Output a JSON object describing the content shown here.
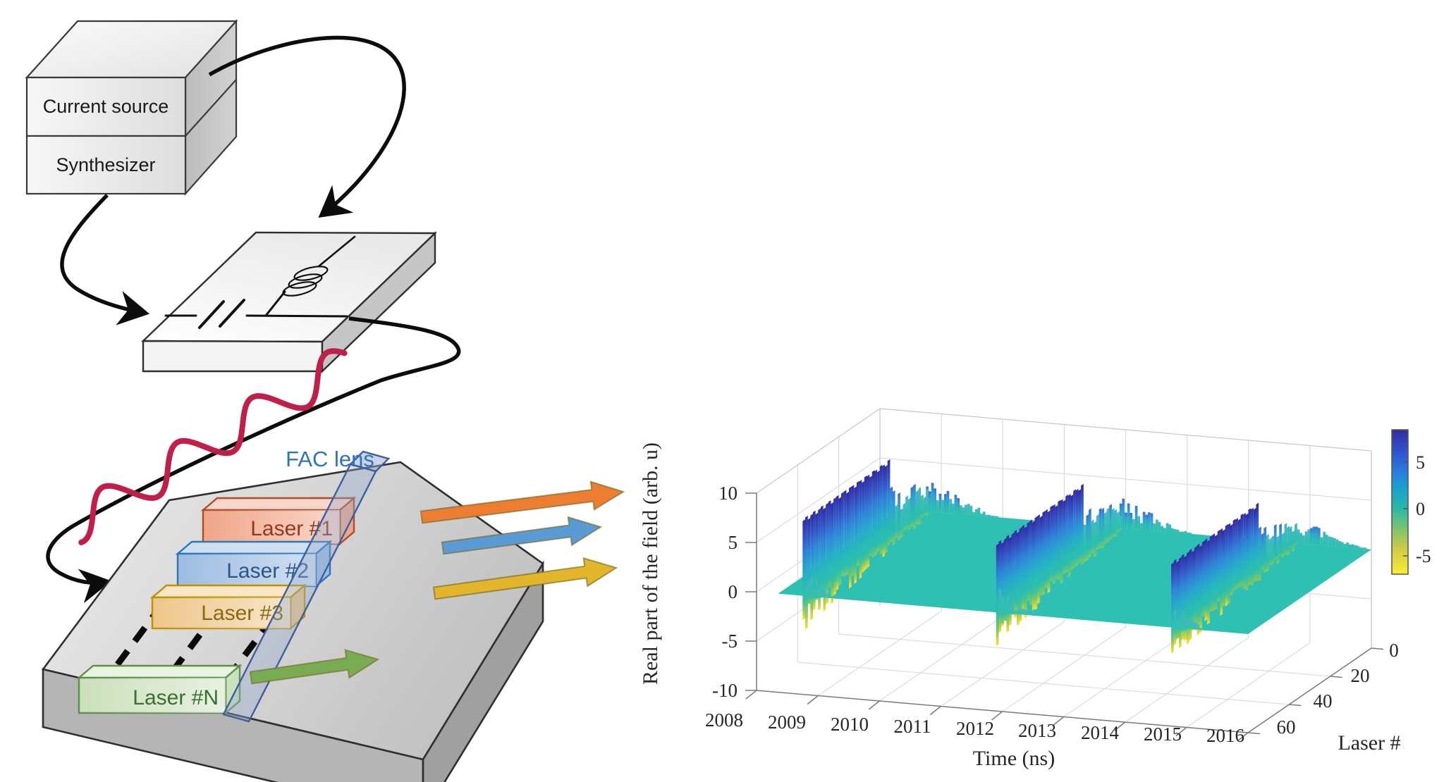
{
  "left_diagram": {
    "current_source_label": "Current source",
    "synthesizer_label": "Synthesizer",
    "fac_lens_label": "FAC lens",
    "fac_lens_label_color": "#2e75b6",
    "rf_wave_color": "#c01f4a",
    "cable_color": "#0c0c0c",
    "lasers": [
      {
        "label": "Laser #1",
        "face": "#f0a689",
        "face_light": "#f9d6c9",
        "edge": "#a8502a",
        "text": "#8f3b22",
        "beam": "#ed7d31"
      },
      {
        "label": "Laser #2",
        "face": "#9dbce2",
        "face_light": "#cfdff2",
        "edge": "#2e75b6",
        "text": "#2a5787",
        "beam": "#5b9bd5"
      },
      {
        "label": "Laser #3",
        "face": "#eec68a",
        "face_light": "#f8e6c4",
        "edge": "#bf9000",
        "text": "#8a6a10",
        "beam": "#e2b52a"
      },
      {
        "label": "Laser #N",
        "face": "#cbe0bc",
        "face_light": "#e9f3e2",
        "edge": "#5f8f4a",
        "text": "#3c6e2e",
        "beam": "#79ac52"
      }
    ]
  },
  "chart_data": {
    "type": "surface",
    "title": "",
    "xlabel": "Time (ns)",
    "x_ticks": [
      2008,
      2009,
      2010,
      2011,
      2012,
      2013,
      2014,
      2015,
      2016
    ],
    "xlim": [
      2008,
      2016
    ],
    "ylabel": "Laser #",
    "y_ticks": [
      0,
      20,
      40,
      60
    ],
    "ylim": [
      0,
      65
    ],
    "zlabel": "Real part of the field (arb. u)",
    "z_ticks": [
      10,
      5,
      0,
      -5,
      -10
    ],
    "zlim": [
      -10,
      10
    ],
    "grid": true,
    "colormap": "parula-reversed",
    "colorbar": {
      "ticks": [
        5,
        0,
        -5
      ],
      "vmin": -7,
      "vmax": 8.4
    },
    "baseline_value": 0,
    "plane_start_time": 2008.35,
    "bursts": [
      {
        "time_ns": 2008.75,
        "peak": 7.8,
        "min": -3.4,
        "ringdown_ns": 1.15
      },
      {
        "time_ns": 2011.9,
        "peak": 7.0,
        "min": -3.2,
        "ringdown_ns": 1.1
      },
      {
        "time_ns": 2014.75,
        "peak": 6.6,
        "min": -3.0,
        "ringdown_ns": 1.0
      }
    ]
  }
}
